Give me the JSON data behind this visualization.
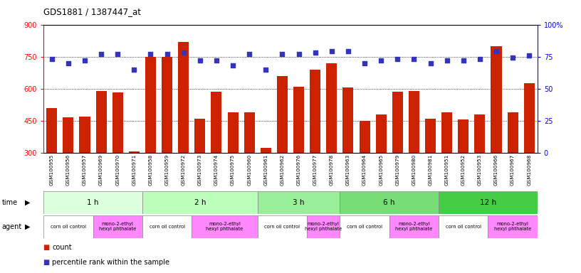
{
  "title": "GDS1881 / 1387447_at",
  "samples": [
    "GSM100955",
    "GSM100956",
    "GSM100957",
    "GSM100969",
    "GSM100970",
    "GSM100971",
    "GSM100958",
    "GSM100959",
    "GSM100972",
    "GSM100973",
    "GSM100974",
    "GSM100975",
    "GSM100960",
    "GSM100961",
    "GSM100962",
    "GSM100976",
    "GSM100977",
    "GSM100978",
    "GSM100963",
    "GSM100964",
    "GSM100965",
    "GSM100979",
    "GSM100980",
    "GSM100981",
    "GSM100951",
    "GSM100952",
    "GSM100953",
    "GSM100966",
    "GSM100967",
    "GSM100968"
  ],
  "counts": [
    510,
    468,
    470,
    590,
    583,
    308,
    750,
    750,
    820,
    460,
    585,
    490,
    490,
    325,
    660,
    610,
    690,
    720,
    605,
    450,
    480,
    585,
    590,
    460,
    490,
    455,
    480,
    800,
    490,
    625
  ],
  "percentiles": [
    73,
    70,
    72,
    77,
    77,
    65,
    77,
    77,
    78,
    72,
    72,
    68,
    77,
    65,
    77,
    77,
    78,
    79,
    79,
    70,
    72,
    73,
    73,
    70,
    72,
    72,
    73,
    79,
    74,
    76
  ],
  "ylim_left": [
    300,
    900
  ],
  "ylim_right": [
    0,
    100
  ],
  "yticks_left": [
    300,
    450,
    600,
    750,
    900
  ],
  "yticks_right": [
    0,
    25,
    50,
    75,
    100
  ],
  "bar_color": "#cc2200",
  "dot_color": "#3333bb",
  "time_groups": [
    {
      "label": "1 h",
      "start": 0,
      "end": 6,
      "color": "#ddffdd"
    },
    {
      "label": "2 h",
      "start": 6,
      "end": 13,
      "color": "#bbffbb"
    },
    {
      "label": "3 h",
      "start": 13,
      "end": 18,
      "color": "#99ee99"
    },
    {
      "label": "6 h",
      "start": 18,
      "end": 24,
      "color": "#77dd77"
    },
    {
      "label": "12 h",
      "start": 24,
      "end": 30,
      "color": "#44cc44"
    }
  ],
  "agent_groups": [
    {
      "label": "corn oil control",
      "start": 0,
      "end": 3,
      "color": "#ffffff"
    },
    {
      "label": "mono-2-ethyl\nhexyl phthalate",
      "start": 3,
      "end": 6,
      "color": "#ff88ff"
    },
    {
      "label": "corn oil control",
      "start": 6,
      "end": 9,
      "color": "#ffffff"
    },
    {
      "label": "mono-2-ethyl\nhexyl phthalate",
      "start": 9,
      "end": 13,
      "color": "#ff88ff"
    },
    {
      "label": "corn oil control",
      "start": 13,
      "end": 16,
      "color": "#ffffff"
    },
    {
      "label": "mono-2-ethyl\nhexyl phthalate",
      "start": 16,
      "end": 18,
      "color": "#ff88ff"
    },
    {
      "label": "corn oil control",
      "start": 18,
      "end": 21,
      "color": "#ffffff"
    },
    {
      "label": "mono-2-ethyl\nhexyl phthalate",
      "start": 21,
      "end": 24,
      "color": "#ff88ff"
    },
    {
      "label": "corn oil control",
      "start": 24,
      "end": 27,
      "color": "#ffffff"
    },
    {
      "label": "mono-2-ethyl\nhexyl phthalate",
      "start": 27,
      "end": 30,
      "color": "#ff88ff"
    }
  ],
  "background_color": "#ffffff",
  "label_bg_color": "#dddddd",
  "figsize": [
    8.16,
    3.84
  ],
  "dpi": 100
}
